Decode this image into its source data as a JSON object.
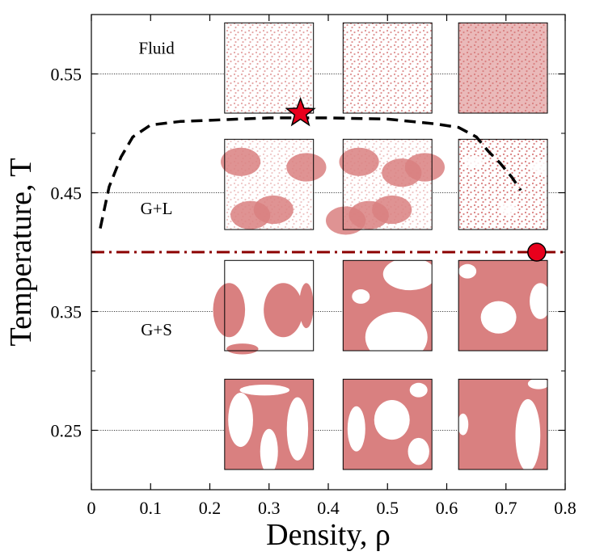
{
  "chart_data": {
    "type": "scatter",
    "title": "",
    "xlabel": "Density, ρ",
    "ylabel": "Temperature, T",
    "xlim": [
      0,
      0.8
    ],
    "ylim": [
      0.2,
      0.6
    ],
    "x_ticks": [
      0,
      0.1,
      0.2,
      0.3,
      0.4,
      0.5,
      0.6,
      0.7,
      0.8
    ],
    "x_tick_labels": [
      "0",
      "0.1",
      "0.2",
      "0.3",
      "0.4",
      "0.5",
      "0.6",
      "0.7",
      "0.8"
    ],
    "y_ticks": [
      0.25,
      0.35,
      0.45,
      0.55
    ],
    "y_tick_labels": [
      "0.25",
      "0.35",
      "0.45",
      "0.55"
    ],
    "y_minor_ticks": [
      0.2,
      0.3,
      0.4,
      0.5,
      0.6
    ],
    "grid": "horizontal dotted lines at labeled y ticks",
    "regions": [
      {
        "label": "Fluid",
        "x": 0.11,
        "y": 0.567
      },
      {
        "label": "G+L",
        "x": 0.11,
        "y": 0.432
      },
      {
        "label": "G+S",
        "x": 0.11,
        "y": 0.33
      }
    ],
    "series": [
      {
        "name": "coexistence curve",
        "style": "dashed",
        "color": "#000000",
        "x": [
          0.015,
          0.03,
          0.05,
          0.07,
          0.1,
          0.15,
          0.2,
          0.3,
          0.4,
          0.5,
          0.58,
          0.62,
          0.65,
          0.67,
          0.69,
          0.71,
          0.725
        ],
        "y": [
          0.42,
          0.455,
          0.48,
          0.497,
          0.507,
          0.51,
          0.511,
          0.513,
          0.513,
          0.512,
          0.508,
          0.505,
          0.497,
          0.485,
          0.475,
          0.463,
          0.452
        ]
      },
      {
        "name": "horizontal reference line",
        "style": "dash-dot",
        "color": "#8b0000",
        "x": [
          0.0,
          0.8
        ],
        "y": [
          0.4,
          0.4
        ]
      }
    ],
    "markers": [
      {
        "name": "critical point",
        "shape": "star",
        "x": 0.353,
        "y": 0.517,
        "color": "#e8001c"
      },
      {
        "name": "circle marker",
        "shape": "circle",
        "x": 0.752,
        "y": 0.4,
        "color": "#e8001c"
      }
    ],
    "snapshot_insets": {
      "columns_x_center": [
        0.3,
        0.5,
        0.695
      ],
      "rows_T_center": [
        0.555,
        0.457,
        0.355,
        0.255
      ],
      "width_density_units": 0.15,
      "height_T_units": 0.076,
      "particle_color": "#d98080",
      "rows": [
        {
          "phase": "Fluid",
          "pattern": [
            "fluid-dilute",
            "fluid-medium",
            "fluid-dense"
          ]
        },
        {
          "phase": "G+L",
          "pattern": [
            "gl-sparse",
            "gl-medium",
            "gl-dense"
          ]
        },
        {
          "phase": "G+S",
          "pattern": [
            "gs-droplets",
            "gs-network",
            "gs-holes"
          ]
        },
        {
          "phase": "G+S",
          "pattern": [
            "gs-stripes",
            "gs-bicontinuous",
            "gs-dense-holes"
          ]
        }
      ]
    }
  }
}
